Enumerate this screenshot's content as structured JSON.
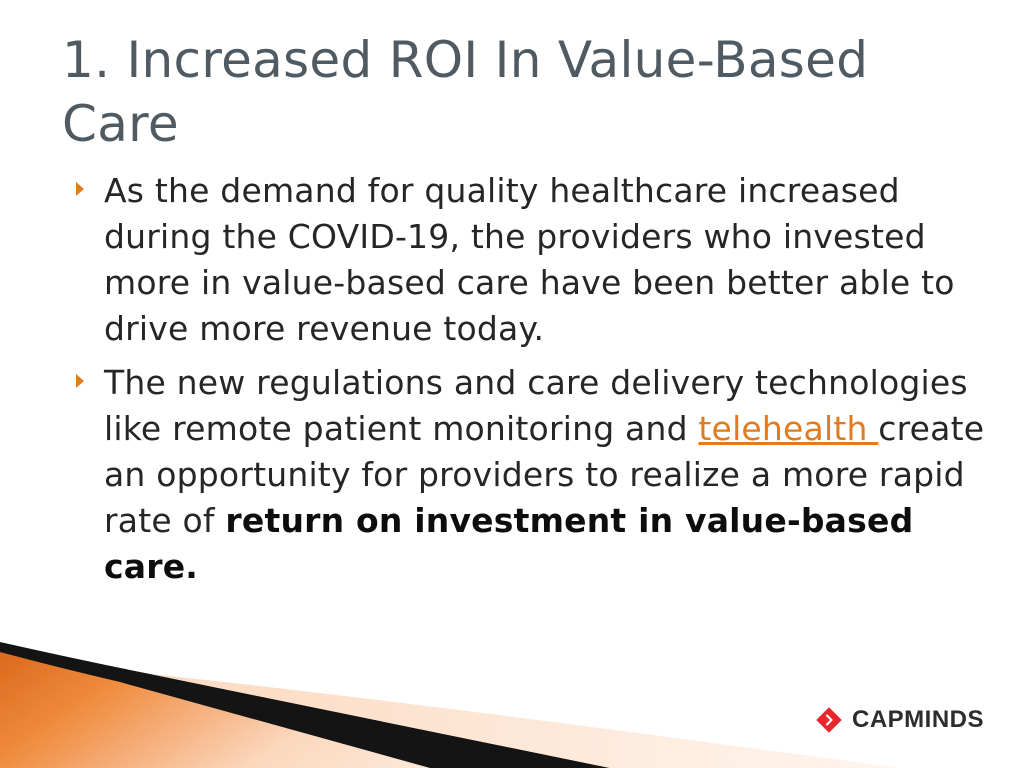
{
  "slide": {
    "title": "1. Increased ROI In Value-Based Care",
    "bullets": [
      {
        "text": "As the demand for quality healthcare increased during the COVID-19, the providers who invested more in value-based care have been better able to drive more revenue today."
      },
      {
        "text_before": "The new regulations and care delivery technologies like remote patient monitoring and ",
        "link_text": "telehealth ",
        "text_after": "create an opportunity for providers to realize a more rapid rate of ",
        "bold_text": "return on investment in value-based care."
      }
    ]
  },
  "logo": {
    "text": "CAPMINDS",
    "icon": "red-diamond-chevron-icon"
  },
  "colors": {
    "title": "#4f5a63",
    "body": "#262626",
    "accent": "#e07b1f",
    "logo_red": "#e8262c"
  }
}
